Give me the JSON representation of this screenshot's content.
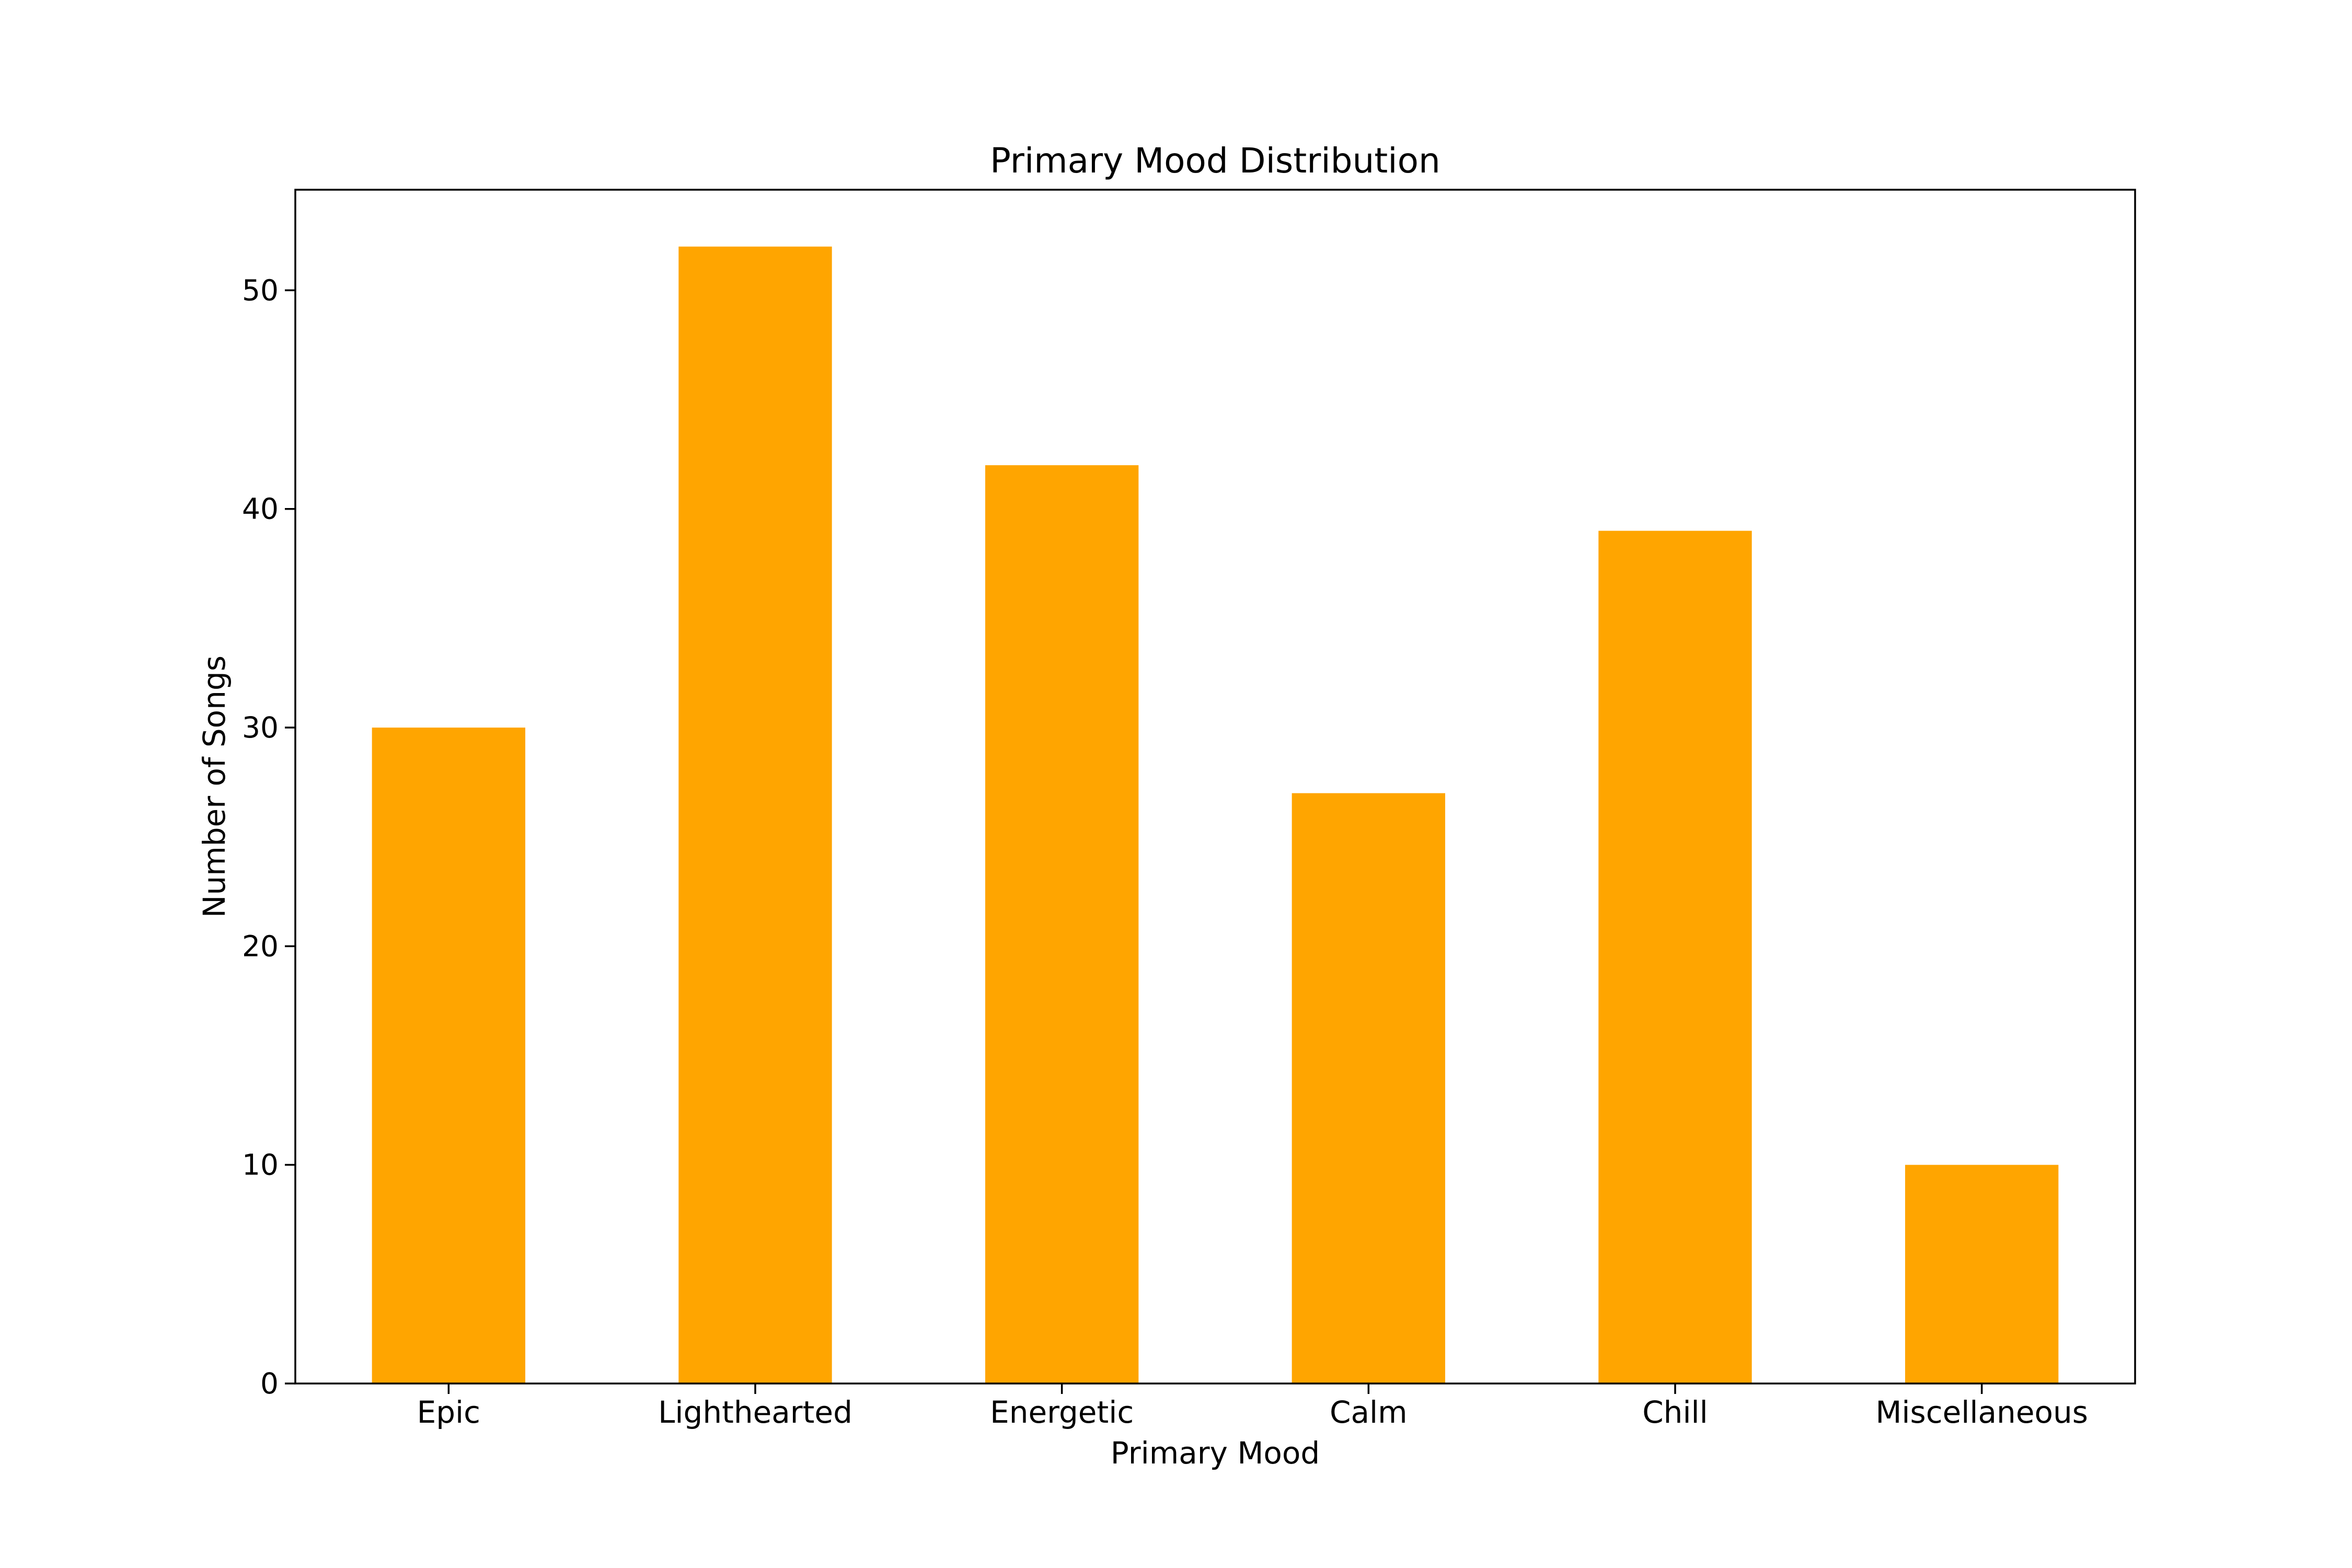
{
  "chart_data": {
    "type": "bar",
    "title": "Primary Mood Distribution",
    "xlabel": "Primary Mood",
    "ylabel": "Number of Songs",
    "categories": [
      "Epic",
      "Lighthearted",
      "Energetic",
      "Calm",
      "Chill",
      "Miscellaneous"
    ],
    "values": [
      30,
      52,
      42,
      27,
      39,
      10
    ],
    "ylim": [
      0,
      54.6
    ],
    "yticks": [
      0,
      10,
      20,
      30,
      40,
      50
    ],
    "bar_color": "#FFA500",
    "grid": false,
    "legend": "none"
  }
}
